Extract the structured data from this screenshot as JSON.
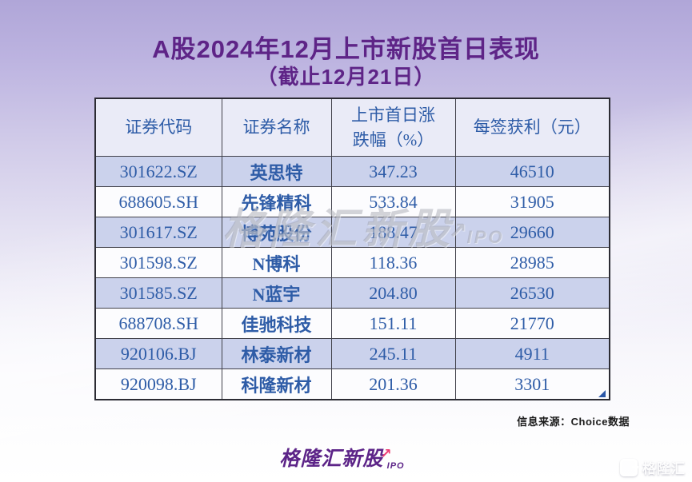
{
  "title": {
    "line1": "A股2024年12月上市新股首日表现",
    "line2": "（截止12月21日）"
  },
  "table": {
    "headers": [
      "证券代码",
      "证券名称",
      "上市首日涨\n跌幅（%）",
      "每签获利（元）"
    ],
    "rows": [
      [
        "301622.SZ",
        "英思特",
        "347.23",
        "46510"
      ],
      [
        "688605.SH",
        "先锋精科",
        "533.84",
        "31905"
      ],
      [
        "301617.SZ",
        "博苑股份",
        "188.47",
        "29660"
      ],
      [
        "301598.SZ",
        "N博科",
        "118.36",
        "28985"
      ],
      [
        "301585.SZ",
        "N蓝宇",
        "204.80",
        "26530"
      ],
      [
        "688708.SH",
        "佳驰科技",
        "151.11",
        "21770"
      ],
      [
        "920106.BJ",
        "林泰新材",
        "245.11",
        "4911"
      ],
      [
        "920098.BJ",
        "科隆新材",
        "201.36",
        "3301"
      ]
    ]
  },
  "chart_data": {
    "type": "table",
    "title": "A股2024年12月上市新股首日表现",
    "subtitle": "（截止12月21日）",
    "columns": [
      "证券代码",
      "证券名称",
      "上市首日涨跌幅（%）",
      "每签获利（元）"
    ],
    "rows": [
      [
        "301622.SZ",
        "英思特",
        347.23,
        46510
      ],
      [
        "688605.SH",
        "先锋精科",
        533.84,
        31905
      ],
      [
        "301617.SZ",
        "博苑股份",
        188.47,
        29660
      ],
      [
        "301598.SZ",
        "N博科",
        118.36,
        28985
      ],
      [
        "301585.SZ",
        "N蓝宇",
        204.8,
        26530
      ],
      [
        "688708.SH",
        "佳驰科技",
        151.11,
        21770
      ],
      [
        "920106.BJ",
        "林泰新材",
        245.11,
        4911
      ],
      [
        "920098.BJ",
        "科隆新材",
        201.36,
        3301
      ]
    ],
    "source": "信息来源：Choice数据",
    "legend_position": "none",
    "grid": true
  },
  "watermark": {
    "text": "格隆汇新股",
    "suffix": "IPO"
  },
  "source_note": "信息来源：Choice数据",
  "footer_logo": {
    "text": "格隆汇新股",
    "sub": "IPO"
  },
  "corner_logo": {
    "text": "格隆汇"
  },
  "colors": {
    "title_purple": "#5e2487",
    "table_text_blue": "#2e5ca7",
    "row_stripe": "#cbd2ec",
    "header_bg": "#eaebf7",
    "border_dark": "#41414a",
    "brand_purple": "#5c2488",
    "arrow_pink": "#ee3d74",
    "bg_top_purple": "#b0a6d8"
  }
}
